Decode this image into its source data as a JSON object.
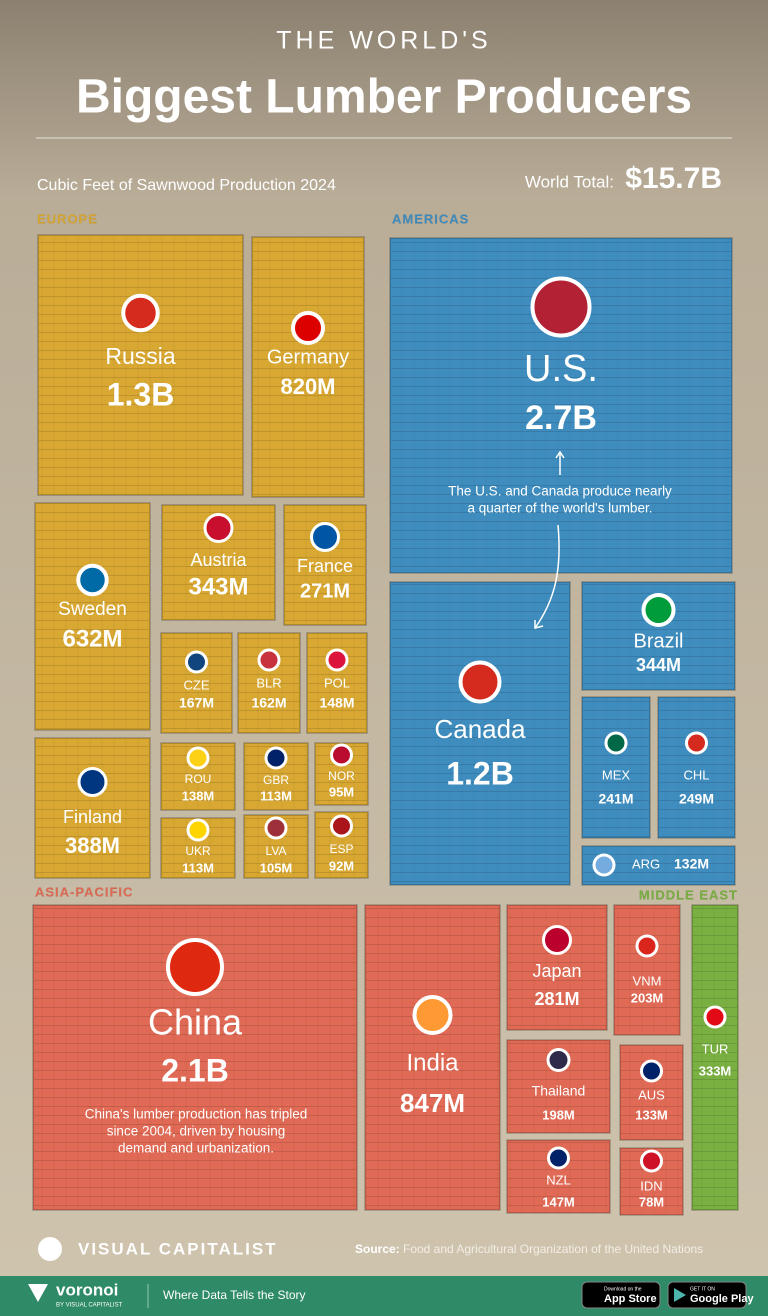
{
  "chart_data": {
    "type": "treemap",
    "supertitle": "THE WORLD'S",
    "title": "Biggest Lumber Producers",
    "subtitle": "Cubic Feet of Sawnwood Production 2024",
    "total_label": "World Total:",
    "total": 15700000000,
    "total_label_value": "$15.7B",
    "series": [
      {
        "name": "EUROPE",
        "color": "#d9a832",
        "categories": [
          "Russia",
          "Germany",
          "Sweden",
          "Austria",
          "France",
          "CZE",
          "BLR",
          "POL",
          "Finland",
          "ROU",
          "GBR",
          "NOR",
          "UKR",
          "LVA",
          "ESP"
        ],
        "values": [
          1300000000,
          820000000,
          632000000,
          343000000,
          271000000,
          167000000,
          162000000,
          148000000,
          388000000,
          138000000,
          113000000,
          95000000,
          113000000,
          105000000,
          92000000
        ],
        "value_labels": [
          "1.3B",
          "820M",
          "632M",
          "343M",
          "271M",
          "167M",
          "162M",
          "148M",
          "388M",
          "138M",
          "113M",
          "95M",
          "113M",
          "105M",
          "92M"
        ]
      },
      {
        "name": "AMERICAS",
        "color": "#3f8dbf",
        "categories": [
          "U.S.",
          "Canada",
          "Brazil",
          "MEX",
          "CHL",
          "ARG"
        ],
        "values": [
          2700000000,
          1200000000,
          344000000,
          241000000,
          249000000,
          132000000
        ],
        "value_labels": [
          "2.7B",
          "1.2B",
          "344M",
          "241M",
          "249M",
          "132M"
        ]
      },
      {
        "name": "ASIA-PACIFIC",
        "color": "#e06a55",
        "categories": [
          "China",
          "India",
          "Japan",
          "VNM",
          "Thailand",
          "AUS",
          "NZL",
          "IDN"
        ],
        "values": [
          2100000000,
          847000000,
          281000000,
          203000000,
          198000000,
          133000000,
          147000000,
          78000000
        ],
        "value_labels": [
          "2.1B",
          "847M",
          "281M",
          "203M",
          "198M",
          "133M",
          "147M",
          "78M"
        ]
      },
      {
        "name": "MIDDLE EAST",
        "color": "#79b041",
        "categories": [
          "TUR"
        ],
        "values": [
          333000000
        ],
        "value_labels": [
          "333M"
        ]
      }
    ],
    "annotations": [
      {
        "lines": [
          "The U.S. and Canada produce nearly",
          "a quarter of the world's lumber."
        ]
      },
      {
        "lines": [
          "China's lumber production has tripled",
          "since 2004, driven by housing",
          "demand and urbanization."
        ]
      }
    ]
  },
  "footer": {
    "brand": "VISUAL CAPITALIST",
    "source_label": "Source:",
    "source": "Food and Agricultural Organization of the United Nations",
    "voronoi": "voronoi",
    "voronoi_by": "BY VISUAL CAPITALIST",
    "tagline": "Where Data Tells the Story",
    "app_store_small": "Download on the",
    "app_store": "App Store",
    "google_small": "GET IT ON",
    "google": "Google Play"
  }
}
